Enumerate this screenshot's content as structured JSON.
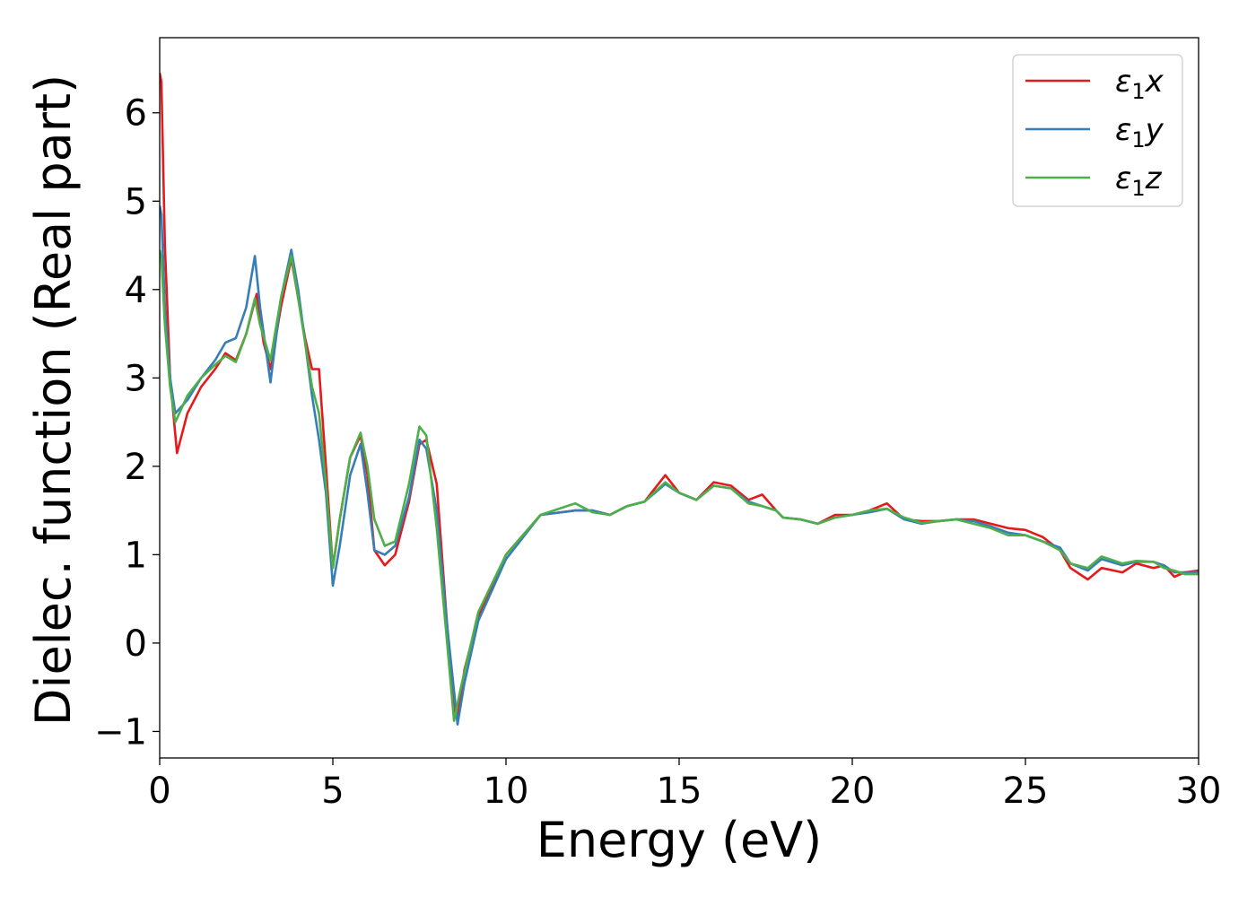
{
  "chart_data": {
    "type": "line",
    "xlabel": "Energy (eV)",
    "ylabel": "Dielec. function (Real part)",
    "xlim": [
      0,
      30
    ],
    "ylim": [
      -1.3,
      6.85
    ],
    "xticks": [
      0,
      5,
      10,
      15,
      20,
      25,
      30
    ],
    "yticks": [
      -1,
      0,
      1,
      2,
      3,
      4,
      5,
      6
    ],
    "grid": false,
    "legend_position": "top-right",
    "series": [
      {
        "name": "ε1x",
        "label_base": "ε",
        "label_sub": "1",
        "label_suffix": "x",
        "color": "#e41a1c",
        "points": [
          [
            0,
            6.45
          ],
          [
            0.05,
            6.35
          ],
          [
            0.15,
            4.5
          ],
          [
            0.3,
            3.0
          ],
          [
            0.5,
            2.15
          ],
          [
            0.8,
            2.6
          ],
          [
            1.2,
            2.9
          ],
          [
            1.6,
            3.1
          ],
          [
            1.9,
            3.28
          ],
          [
            2.2,
            3.2
          ],
          [
            2.5,
            3.5
          ],
          [
            2.8,
            3.95
          ],
          [
            3.0,
            3.4
          ],
          [
            3.2,
            3.1
          ],
          [
            3.5,
            3.8
          ],
          [
            3.8,
            4.35
          ],
          [
            4.0,
            3.9
          ],
          [
            4.2,
            3.45
          ],
          [
            4.4,
            3.1
          ],
          [
            4.6,
            3.1
          ],
          [
            4.8,
            2.0
          ],
          [
            5.0,
            0.85
          ],
          [
            5.2,
            1.4
          ],
          [
            5.5,
            2.1
          ],
          [
            5.8,
            2.35
          ],
          [
            6.0,
            1.9
          ],
          [
            6.2,
            1.05
          ],
          [
            6.5,
            0.88
          ],
          [
            6.8,
            1.0
          ],
          [
            7.2,
            1.6
          ],
          [
            7.5,
            2.25
          ],
          [
            7.7,
            2.3
          ],
          [
            8.0,
            1.8
          ],
          [
            8.3,
            0.2
          ],
          [
            8.5,
            -0.8
          ],
          [
            8.6,
            -0.85
          ],
          [
            8.8,
            -0.3
          ],
          [
            9.2,
            0.3
          ],
          [
            10,
            1.0
          ],
          [
            11,
            1.45
          ],
          [
            12,
            1.5
          ],
          [
            12.5,
            1.5
          ],
          [
            13,
            1.45
          ],
          [
            13.5,
            1.55
          ],
          [
            14,
            1.6
          ],
          [
            14.6,
            1.9
          ],
          [
            15,
            1.7
          ],
          [
            15.5,
            1.62
          ],
          [
            16,
            1.82
          ],
          [
            16.5,
            1.78
          ],
          [
            17,
            1.62
          ],
          [
            17.4,
            1.68
          ],
          [
            17.8,
            1.5
          ],
          [
            18,
            1.42
          ],
          [
            18.5,
            1.4
          ],
          [
            19,
            1.35
          ],
          [
            19.5,
            1.45
          ],
          [
            20,
            1.45
          ],
          [
            20.5,
            1.5
          ],
          [
            21,
            1.58
          ],
          [
            21.5,
            1.4
          ],
          [
            22,
            1.38
          ],
          [
            22.5,
            1.38
          ],
          [
            23,
            1.4
          ],
          [
            23.5,
            1.4
          ],
          [
            24,
            1.35
          ],
          [
            24.5,
            1.3
          ],
          [
            25,
            1.28
          ],
          [
            25.5,
            1.2
          ],
          [
            26,
            1.05
          ],
          [
            26.3,
            0.85
          ],
          [
            26.8,
            0.72
          ],
          [
            27.2,
            0.85
          ],
          [
            27.8,
            0.8
          ],
          [
            28.2,
            0.9
          ],
          [
            28.7,
            0.85
          ],
          [
            29,
            0.88
          ],
          [
            29.3,
            0.75
          ],
          [
            29.6,
            0.8
          ],
          [
            30,
            0.82
          ]
        ]
      },
      {
        "name": "ε1y",
        "label_base": "ε",
        "label_sub": "1",
        "label_suffix": "y",
        "color": "#377eb8",
        "points": [
          [
            0,
            4.95
          ],
          [
            0.05,
            4.85
          ],
          [
            0.15,
            3.8
          ],
          [
            0.3,
            3.0
          ],
          [
            0.45,
            2.6
          ],
          [
            0.8,
            2.75
          ],
          [
            1.2,
            3.0
          ],
          [
            1.6,
            3.2
          ],
          [
            1.9,
            3.4
          ],
          [
            2.2,
            3.45
          ],
          [
            2.5,
            3.8
          ],
          [
            2.75,
            4.38
          ],
          [
            2.9,
            3.8
          ],
          [
            3.2,
            2.95
          ],
          [
            3.5,
            3.9
          ],
          [
            3.8,
            4.45
          ],
          [
            4.0,
            4.0
          ],
          [
            4.2,
            3.4
          ],
          [
            4.4,
            2.8
          ],
          [
            4.6,
            2.3
          ],
          [
            4.8,
            1.7
          ],
          [
            5.0,
            0.65
          ],
          [
            5.2,
            1.1
          ],
          [
            5.5,
            1.9
          ],
          [
            5.8,
            2.25
          ],
          [
            6.0,
            1.7
          ],
          [
            6.2,
            1.05
          ],
          [
            6.5,
            1.0
          ],
          [
            6.8,
            1.1
          ],
          [
            7.2,
            1.65
          ],
          [
            7.5,
            2.3
          ],
          [
            7.7,
            2.2
          ],
          [
            8.0,
            1.5
          ],
          [
            8.3,
            0.2
          ],
          [
            8.6,
            -0.92
          ],
          [
            8.8,
            -0.45
          ],
          [
            9.2,
            0.25
          ],
          [
            10,
            0.95
          ],
          [
            11,
            1.45
          ],
          [
            12,
            1.5
          ],
          [
            12.5,
            1.5
          ],
          [
            13,
            1.45
          ],
          [
            13.5,
            1.55
          ],
          [
            14,
            1.6
          ],
          [
            14.6,
            1.8
          ],
          [
            15,
            1.7
          ],
          [
            15.5,
            1.62
          ],
          [
            16,
            1.78
          ],
          [
            16.5,
            1.75
          ],
          [
            17,
            1.6
          ],
          [
            17.4,
            1.55
          ],
          [
            17.8,
            1.5
          ],
          [
            18,
            1.42
          ],
          [
            18.5,
            1.4
          ],
          [
            19,
            1.35
          ],
          [
            19.5,
            1.42
          ],
          [
            20,
            1.45
          ],
          [
            20.5,
            1.48
          ],
          [
            21,
            1.52
          ],
          [
            21.5,
            1.4
          ],
          [
            22,
            1.35
          ],
          [
            22.5,
            1.38
          ],
          [
            23,
            1.4
          ],
          [
            23.5,
            1.38
          ],
          [
            24,
            1.32
          ],
          [
            24.5,
            1.25
          ],
          [
            25,
            1.22
          ],
          [
            25.5,
            1.15
          ],
          [
            26,
            1.08
          ],
          [
            26.3,
            0.9
          ],
          [
            26.8,
            0.82
          ],
          [
            27.2,
            0.95
          ],
          [
            27.8,
            0.88
          ],
          [
            28.2,
            0.92
          ],
          [
            28.7,
            0.92
          ],
          [
            29,
            0.88
          ],
          [
            29.3,
            0.8
          ],
          [
            29.6,
            0.8
          ],
          [
            30,
            0.8
          ]
        ]
      },
      {
        "name": "ε1z",
        "label_base": "ε",
        "label_sub": "1",
        "label_suffix": "z",
        "color": "#4daf4a",
        "points": [
          [
            0,
            4.45
          ],
          [
            0.05,
            4.35
          ],
          [
            0.15,
            3.6
          ],
          [
            0.3,
            2.9
          ],
          [
            0.45,
            2.5
          ],
          [
            0.8,
            2.8
          ],
          [
            1.2,
            3.0
          ],
          [
            1.6,
            3.15
          ],
          [
            1.9,
            3.25
          ],
          [
            2.2,
            3.18
          ],
          [
            2.5,
            3.5
          ],
          [
            2.75,
            3.9
          ],
          [
            2.9,
            3.6
          ],
          [
            3.2,
            3.2
          ],
          [
            3.5,
            3.9
          ],
          [
            3.8,
            4.38
          ],
          [
            4.0,
            3.9
          ],
          [
            4.2,
            3.4
          ],
          [
            4.4,
            2.9
          ],
          [
            4.6,
            2.6
          ],
          [
            4.8,
            1.8
          ],
          [
            5.0,
            0.85
          ],
          [
            5.2,
            1.4
          ],
          [
            5.5,
            2.1
          ],
          [
            5.8,
            2.38
          ],
          [
            6.0,
            2.0
          ],
          [
            6.2,
            1.4
          ],
          [
            6.5,
            1.1
          ],
          [
            6.8,
            1.15
          ],
          [
            7.2,
            1.8
          ],
          [
            7.5,
            2.45
          ],
          [
            7.7,
            2.35
          ],
          [
            8.0,
            1.3
          ],
          [
            8.3,
            0.0
          ],
          [
            8.5,
            -0.88
          ],
          [
            8.7,
            -0.5
          ],
          [
            9.2,
            0.35
          ],
          [
            10,
            1.0
          ],
          [
            11,
            1.45
          ],
          [
            12,
            1.58
          ],
          [
            12.5,
            1.48
          ],
          [
            13,
            1.45
          ],
          [
            13.5,
            1.55
          ],
          [
            14,
            1.6
          ],
          [
            14.6,
            1.82
          ],
          [
            15,
            1.7
          ],
          [
            15.5,
            1.62
          ],
          [
            16,
            1.78
          ],
          [
            16.5,
            1.75
          ],
          [
            17,
            1.58
          ],
          [
            17.4,
            1.55
          ],
          [
            17.8,
            1.5
          ],
          [
            18,
            1.42
          ],
          [
            18.5,
            1.4
          ],
          [
            19,
            1.35
          ],
          [
            19.5,
            1.42
          ],
          [
            20,
            1.45
          ],
          [
            20.5,
            1.5
          ],
          [
            21,
            1.52
          ],
          [
            21.5,
            1.42
          ],
          [
            22,
            1.36
          ],
          [
            22.5,
            1.38
          ],
          [
            23,
            1.4
          ],
          [
            23.5,
            1.35
          ],
          [
            24,
            1.3
          ],
          [
            24.5,
            1.22
          ],
          [
            25,
            1.22
          ],
          [
            25.5,
            1.15
          ],
          [
            26,
            1.05
          ],
          [
            26.3,
            0.9
          ],
          [
            26.8,
            0.85
          ],
          [
            27.2,
            0.98
          ],
          [
            27.8,
            0.9
          ],
          [
            28.2,
            0.93
          ],
          [
            28.7,
            0.92
          ],
          [
            29,
            0.85
          ],
          [
            29.3,
            0.82
          ],
          [
            29.6,
            0.78
          ],
          [
            30,
            0.78
          ]
        ]
      }
    ]
  }
}
